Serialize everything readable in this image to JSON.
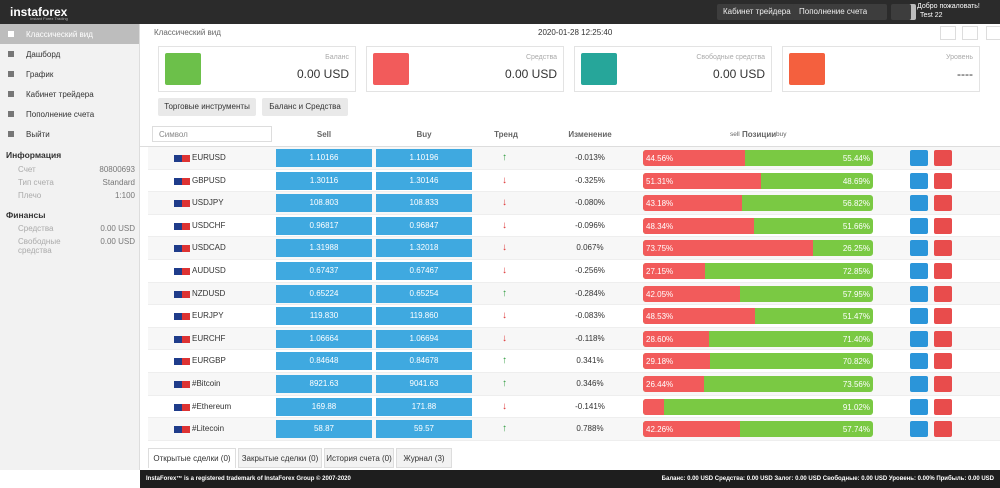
{
  "header": {
    "logo": "instaforex",
    "logo_sub": "Instant Forex Trading",
    "buttons": [
      "Кабинет трейдера",
      "Пополнение счета"
    ],
    "welcome": "Добро пожаловать!",
    "user": "Test 22"
  },
  "sidebar": {
    "menu": [
      "Классический вид",
      "Дашборд",
      "График",
      "Кабинет трейдера",
      "Пополнение счета",
      "Выйти"
    ],
    "info_title": "Информация",
    "info": [
      [
        "Счет",
        "80800693"
      ],
      [
        "Тип счета",
        "Standard"
      ],
      [
        "Плечо",
        "1:100"
      ]
    ],
    "finance_title": "Финансы",
    "finance": [
      [
        "Средства",
        "0.00 USD"
      ],
      [
        "Свободные средства",
        "0.00 USD"
      ]
    ]
  },
  "toolbar": {
    "view": "Классический вид",
    "datetime": "2020-01-28 12:25:40"
  },
  "cards": [
    {
      "label": "Баланс",
      "value": "0.00 USD",
      "color": "#6cc04a"
    },
    {
      "label": "Средства",
      "value": "0.00 USD",
      "color": "#f25b5b"
    },
    {
      "label": "Свободные средства",
      "value": "0.00 USD",
      "color": "#26a69a"
    },
    {
      "label": "Уровень",
      "value": "----",
      "color": "#f4603e"
    }
  ],
  "tabs": [
    "Торговые инструменты",
    "Баланс и Средства"
  ],
  "table": {
    "headers": {
      "symbol": "Символ",
      "sell": "Sell",
      "buy": "Buy",
      "trend": "Тренд",
      "change": "Изменение",
      "pos_sell": "sell",
      "pos": "Позиции",
      "pos_buy": "buy"
    },
    "rows": [
      {
        "symbol": "EURUSD",
        "sell": "1.10166",
        "buy": "1.10196",
        "trend": "up",
        "change": "-0.013%",
        "pos_sell": "44.56%",
        "pos_buy": "55.44%"
      },
      {
        "symbol": "GBPUSD",
        "sell": "1.30116",
        "buy": "1.30146",
        "trend": "down",
        "change": "-0.325%",
        "pos_sell": "51.31%",
        "pos_buy": "48.69%"
      },
      {
        "symbol": "USDJPY",
        "sell": "108.803",
        "buy": "108.833",
        "trend": "down",
        "change": "-0.080%",
        "pos_sell": "43.18%",
        "pos_buy": "56.82%"
      },
      {
        "symbol": "USDCHF",
        "sell": "0.96817",
        "buy": "0.96847",
        "trend": "down",
        "change": "-0.096%",
        "pos_sell": "48.34%",
        "pos_buy": "51.66%"
      },
      {
        "symbol": "USDCAD",
        "sell": "1.31988",
        "buy": "1.32018",
        "trend": "down",
        "change": "0.067%",
        "pos_sell": "73.75%",
        "pos_buy": "26.25%"
      },
      {
        "symbol": "AUDUSD",
        "sell": "0.67437",
        "buy": "0.67467",
        "trend": "down",
        "change": "-0.256%",
        "pos_sell": "27.15%",
        "pos_buy": "72.85%"
      },
      {
        "symbol": "NZDUSD",
        "sell": "0.65224",
        "buy": "0.65254",
        "trend": "up",
        "change": "-0.284%",
        "pos_sell": "42.05%",
        "pos_buy": "57.95%"
      },
      {
        "symbol": "EURJPY",
        "sell": "119.830",
        "buy": "119.860",
        "trend": "down",
        "change": "-0.083%",
        "pos_sell": "48.53%",
        "pos_buy": "51.47%"
      },
      {
        "symbol": "EURCHF",
        "sell": "1.06664",
        "buy": "1.06694",
        "trend": "down",
        "change": "-0.118%",
        "pos_sell": "28.60%",
        "pos_buy": "71.40%"
      },
      {
        "symbol": "EURGBP",
        "sell": "0.84648",
        "buy": "0.84678",
        "trend": "up",
        "change": "0.341%",
        "pos_sell": "29.18%",
        "pos_buy": "70.82%"
      },
      {
        "symbol": "#Bitcoin",
        "sell": "8921.63",
        "buy": "9041.63",
        "trend": "up",
        "change": "0.346%",
        "pos_sell": "26.44%",
        "pos_buy": "73.56%"
      },
      {
        "symbol": "#Ethereum",
        "sell": "169.88",
        "buy": "171.88",
        "trend": "down",
        "change": "-0.141%",
        "pos_sell": null,
        "pos_buy": "91.02%"
      },
      {
        "symbol": "#Litecoin",
        "sell": "58.87",
        "buy": "59.57",
        "trend": "up",
        "change": "0.788%",
        "pos_sell": "42.26%",
        "pos_buy": "57.74%"
      }
    ]
  },
  "bottom_tabs": [
    "Открытые сделки (0)",
    "Закрытые сделки (0)",
    "История счета (0)",
    "Журнал (3)"
  ],
  "footer": {
    "left": "InstaForex™ is a registered trademark of InstaForex Group © 2007-2020",
    "right": "Баланс: 0.00 USD Средства: 0.00 USD Залог: 0.00 USD Свободные: 0.00 USD Уровень: 0.00% Прибыль: 0.00 USD"
  }
}
